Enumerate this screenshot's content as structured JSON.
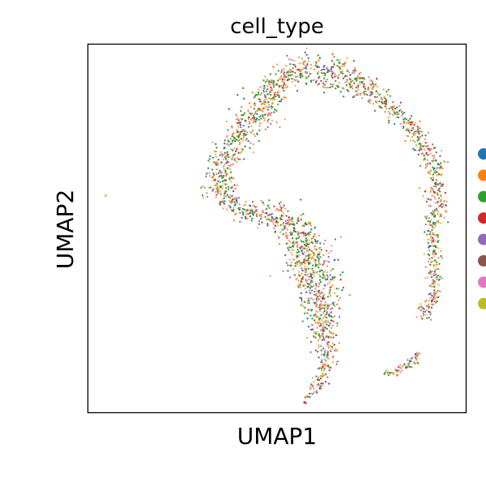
{
  "chart_data": {
    "type": "scatter",
    "title": "cell_type",
    "xlabel": "UMAP1",
    "ylabel": "UMAP2",
    "xlim": [
      0,
      100
    ],
    "ylim": [
      0,
      100
    ],
    "grid": false,
    "legend_placement": "right",
    "ticks": "none",
    "series_colors": [
      "#1f77b4",
      "#ff7f0e",
      "#2ca02c",
      "#d62728",
      "#9467bd",
      "#8c564b",
      "#e377c2",
      "#bcbd22"
    ],
    "point_mix": [
      "#2ca02c",
      "#f4a460",
      "#ff7f0e",
      "#2ca02c",
      "#f4a460",
      "#1f77b4",
      "#8c564b",
      "#e377c2",
      "#9467bd",
      "#d62728",
      "#bcbd22",
      "#f4a460",
      "#2ca02c",
      "#c0a070"
    ],
    "structure_path": [
      [
        55.4,
        92.6
      ],
      [
        52.6,
        92.4
      ],
      [
        50.5,
        91.0
      ],
      [
        49.3,
        87.9
      ],
      [
        47.2,
        84.4
      ],
      [
        44.6,
        81.1
      ],
      [
        42.7,
        77.5
      ],
      [
        40.6,
        74.9
      ],
      [
        38.5,
        72.2
      ],
      [
        36.6,
        69.6
      ],
      [
        34.9,
        66.5
      ],
      [
        34.2,
        62.5
      ],
      [
        35.4,
        58.7
      ],
      [
        37.7,
        56.7
      ],
      [
        40.6,
        55.2
      ],
      [
        43.0,
        54.6
      ],
      [
        45.9,
        53.7
      ],
      [
        49.3,
        52.7
      ],
      [
        52.4,
        51.8
      ],
      [
        55.4,
        50.2
      ],
      [
        57.3,
        46.9
      ],
      [
        58.5,
        42.3
      ],
      [
        60.0,
        38.1
      ],
      [
        61.4,
        31.8
      ],
      [
        62.4,
        24.8
      ],
      [
        63.3,
        18.1
      ],
      [
        62.4,
        11.3
      ],
      [
        60.2,
        6.1
      ],
      [
        57.0,
        2.1
      ]
    ],
    "structure_widths": [
      5.0,
      4.5,
      4.5,
      5.0,
      5.5,
      6.0,
      5.5,
      5.0,
      4.5,
      4.5,
      4.0,
      5.5,
      4.5,
      3.5,
      3.5,
      3.5,
      4.0,
      4.5,
      5.0,
      5.5,
      7.0,
      8.5,
      8.0,
      7.0,
      5.5,
      4.0,
      3.0,
      2.0,
      0.6
    ],
    "structure_path_2": [
      [
        55.4,
        92.6
      ],
      [
        60.0,
        92.9
      ],
      [
        64.5,
        92.0
      ],
      [
        68.7,
        90.5
      ],
      [
        73.0,
        88.1
      ],
      [
        77.5,
        84.6
      ],
      [
        82.5,
        80.9
      ],
      [
        86.1,
        76.4
      ],
      [
        89.2,
        72.4
      ],
      [
        91.1,
        68.0
      ],
      [
        92.1,
        63.6
      ],
      [
        92.5,
        59.8
      ],
      [
        91.8,
        56.0
      ],
      [
        91.3,
        51.4
      ],
      [
        91.3,
        46.0
      ],
      [
        91.6,
        39.8
      ],
      [
        91.6,
        34.4
      ],
      [
        90.8,
        29.4
      ],
      [
        89.0,
        27.1
      ],
      [
        87.8,
        25.5
      ]
    ],
    "structure_widths_2": [
      4.5,
      4.5,
      5.0,
      5.0,
      4.5,
      3.5,
      3.0,
      3.0,
      3.5,
      3.5,
      3.5,
      3.0,
      4.0,
      3.0,
      2.5,
      2.5,
      2.5,
      2.5,
      2.5,
      1.5
    ],
    "structure_path_3": [
      [
        78.4,
        10.3
      ],
      [
        80.7,
        10.7
      ],
      [
        83.5,
        11.7
      ],
      [
        85.4,
        13.6
      ],
      [
        86.8,
        14.7
      ],
      [
        87.3,
        16.3
      ]
    ],
    "structure_widths_3": [
      0.8,
      1.2,
      1.4,
      1.8,
      1.6,
      1.0
    ],
    "outlier_points": [
      [
        4.7,
        58.6
      ],
      [
        4.9,
        58.9
      ]
    ]
  }
}
